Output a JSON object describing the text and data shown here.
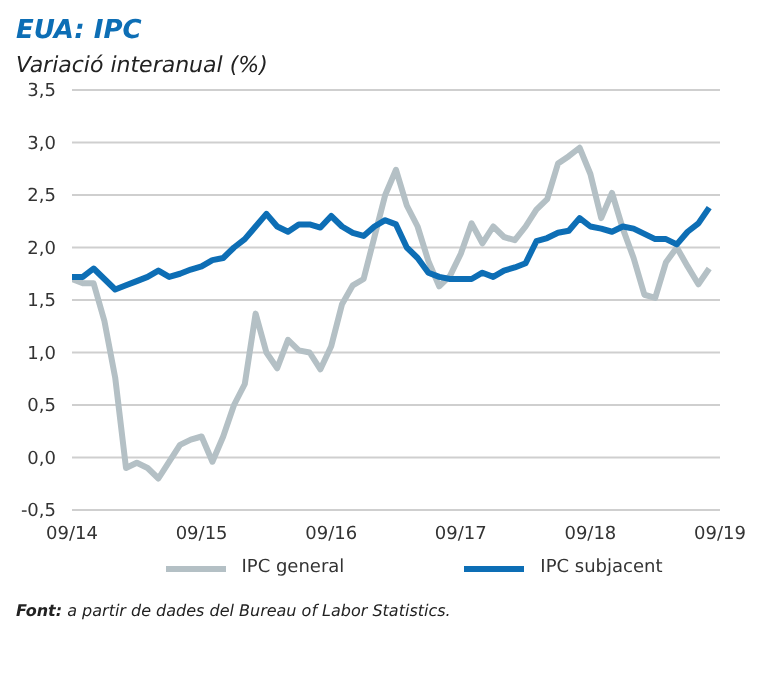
{
  "chart_data": {
    "type": "line",
    "title": "EUA: IPC",
    "subtitle": "Variació interanual (%)",
    "x": [
      "2014-09",
      "2014-10",
      "2014-11",
      "2014-12",
      "2015-01",
      "2015-02",
      "2015-03",
      "2015-04",
      "2015-05",
      "2015-06",
      "2015-07",
      "2015-08",
      "2015-09",
      "2015-10",
      "2015-11",
      "2015-12",
      "2016-01",
      "2016-02",
      "2016-03",
      "2016-04",
      "2016-05",
      "2016-06",
      "2016-07",
      "2016-08",
      "2016-09",
      "2016-10",
      "2016-11",
      "2016-12",
      "2017-01",
      "2017-02",
      "2017-03",
      "2017-04",
      "2017-05",
      "2017-06",
      "2017-07",
      "2017-08",
      "2017-09",
      "2017-10",
      "2017-11",
      "2017-12",
      "2018-01",
      "2018-02",
      "2018-03",
      "2018-04",
      "2018-05",
      "2018-06",
      "2018-07",
      "2018-08",
      "2018-09",
      "2018-10",
      "2018-11",
      "2018-12",
      "2019-01",
      "2019-02",
      "2019-03",
      "2019-04",
      "2019-05",
      "2019-06",
      "2019-07",
      "2019-08"
    ],
    "series": [
      {
        "name": "IPC general",
        "color": "#b4c0c5",
        "values": [
          1.7,
          1.66,
          1.66,
          1.3,
          0.76,
          -0.1,
          -0.05,
          -0.1,
          -0.2,
          -0.04,
          0.12,
          0.17,
          0.2,
          -0.04,
          0.2,
          0.5,
          0.7,
          1.37,
          1.0,
          0.85,
          1.12,
          1.02,
          1.0,
          0.84,
          1.06,
          1.46,
          1.64,
          1.7,
          2.1,
          2.5,
          2.74,
          2.4,
          2.2,
          1.87,
          1.63,
          1.73,
          1.94,
          2.23,
          2.04,
          2.2,
          2.1,
          2.07,
          2.2,
          2.36,
          2.46,
          2.8,
          2.87,
          2.95,
          2.7,
          2.28,
          2.52,
          2.18,
          1.9,
          1.55,
          1.52,
          1.86,
          2.0,
          1.82,
          1.65,
          1.8
        ]
      },
      {
        "name": "IPC subjacent",
        "color": "#0d6eb5",
        "values": [
          1.72,
          1.72,
          1.8,
          1.7,
          1.6,
          1.64,
          1.68,
          1.72,
          1.78,
          1.72,
          1.75,
          1.79,
          1.82,
          1.88,
          1.9,
          2.0,
          2.08,
          2.2,
          2.32,
          2.2,
          2.15,
          2.22,
          2.22,
          2.19,
          2.3,
          2.2,
          2.14,
          2.11,
          2.2,
          2.26,
          2.22,
          2.0,
          1.9,
          1.76,
          1.72,
          1.7,
          1.7,
          1.7,
          1.76,
          1.72,
          1.78,
          1.81,
          1.85,
          2.06,
          2.09,
          2.14,
          2.16,
          2.28,
          2.2,
          2.18,
          2.15,
          2.2,
          2.18,
          2.13,
          2.08,
          2.08,
          2.03,
          2.15,
          2.23,
          2.38
        ]
      }
    ],
    "xlim": [
      "2014-09",
      "2019-09"
    ],
    "xticks": [
      {
        "value": "2014-09",
        "label": "09/14"
      },
      {
        "value": "2015-09",
        "label": "09/15"
      },
      {
        "value": "2016-09",
        "label": "09/16"
      },
      {
        "value": "2017-09",
        "label": "09/17"
      },
      {
        "value": "2018-09",
        "label": "09/18"
      },
      {
        "value": "2019-09",
        "label": "09/19"
      }
    ],
    "ylim": [
      -0.5,
      3.5
    ],
    "yticks": [
      {
        "value": -0.5,
        "label": "-0,5"
      },
      {
        "value": 0,
        "label": "0,0"
      },
      {
        "value": 0.5,
        "label": "0,5"
      },
      {
        "value": 1,
        "label": "1,0"
      },
      {
        "value": 1.5,
        "label": "1,5"
      },
      {
        "value": 2,
        "label": "2,0"
      },
      {
        "value": 2.5,
        "label": "2,5"
      },
      {
        "value": 3,
        "label": "3,0"
      },
      {
        "value": 3.5,
        "label": "3,5"
      }
    ],
    "grid": "y",
    "legend": "bottom",
    "marker": "none",
    "line_style": "solid",
    "annotations": [
      "Font: a partir de dades del Bureau of Labor Statistics."
    ]
  }
}
